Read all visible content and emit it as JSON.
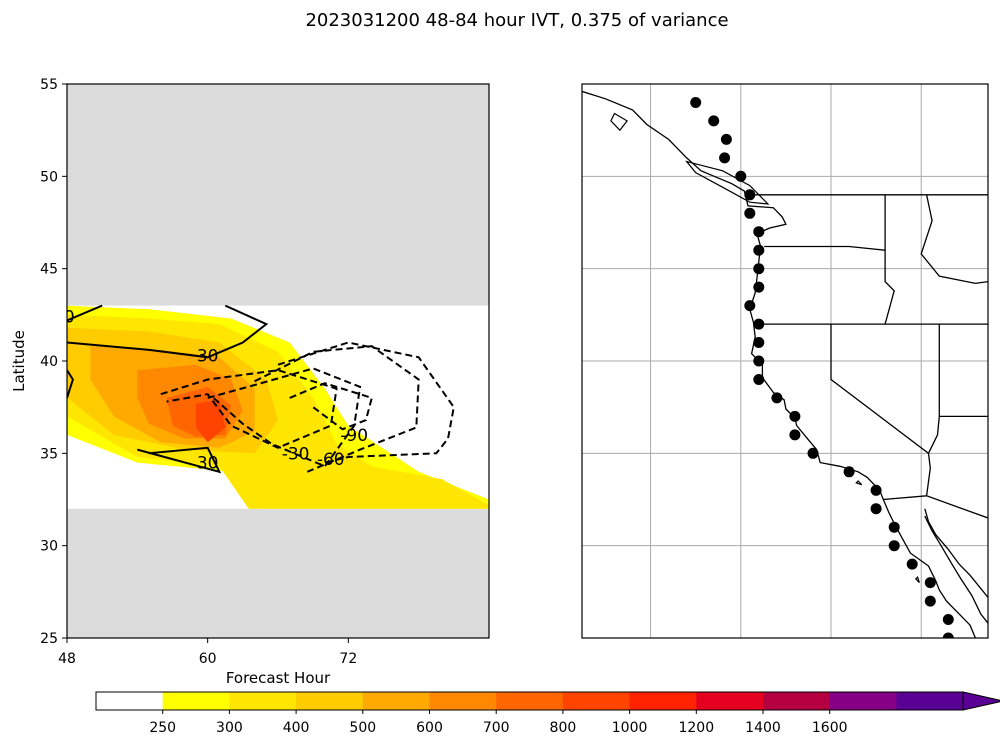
{
  "title": "2023031200 48-84 hour IVT, 0.375 of variance",
  "chart_data": [
    {
      "type": "contour",
      "xlabel": "Forecast Hour",
      "ylabel": "Latitude",
      "xlim": [
        48,
        84
      ],
      "ylim": [
        25,
        55
      ],
      "xticks": [
        48,
        60,
        72
      ],
      "yticks": [
        25,
        30,
        35,
        40,
        45,
        50,
        55
      ],
      "data_lat_range": [
        32,
        43
      ],
      "masked_color": "#dcdcdc",
      "filled_levels": [
        {
          "level": 250,
          "color": "#ffff00",
          "region": [
            [
              48,
              43
            ],
            [
              55,
              42.8
            ],
            [
              62,
              42.3
            ],
            [
              67,
              41
            ],
            [
              70,
              38.5
            ],
            [
              72,
              36.5
            ],
            [
              78,
              34
            ],
            [
              84,
              32.5
            ],
            [
              84,
              32
            ],
            [
              65,
              32
            ],
            [
              62,
              34
            ],
            [
              54,
              34.5
            ],
            [
              48,
              36
            ]
          ]
        },
        {
          "level": 300,
          "color": "#ffe600",
          "region": [
            [
              48,
              42.5
            ],
            [
              55,
              42.3
            ],
            [
              61,
              42
            ],
            [
              66,
              40.5
            ],
            [
              69,
              38
            ],
            [
              71,
              35.5
            ],
            [
              74,
              34.3
            ],
            [
              80,
              33.6
            ],
            [
              84,
              32.2
            ],
            [
              84,
              32
            ],
            [
              63.5,
              32
            ],
            [
              61,
              34.3
            ],
            [
              54,
              34.8
            ],
            [
              48,
              37
            ]
          ]
        },
        {
          "level": 400,
          "color": "#ffcc00",
          "region": [
            [
              48,
              41.8
            ],
            [
              55,
              41.6
            ],
            [
              61,
              41
            ],
            [
              65,
              39
            ],
            [
              66,
              36.8
            ],
            [
              64,
              35
            ],
            [
              58,
              35.2
            ],
            [
              52,
              36
            ],
            [
              48,
              38
            ]
          ]
        },
        {
          "level": 500,
          "color": "#ffaa00",
          "region": [
            [
              50,
              40.8
            ],
            [
              56,
              40.6
            ],
            [
              61,
              40.2
            ],
            [
              64,
              38.5
            ],
            [
              64,
              36.2
            ],
            [
              61,
              35.3
            ],
            [
              56,
              35.6
            ],
            [
              52,
              37
            ],
            [
              50,
              39
            ]
          ]
        },
        {
          "level": 600,
          "color": "#ff8800",
          "region": [
            [
              54,
              39.5
            ],
            [
              59,
              39.8
            ],
            [
              62,
              39
            ],
            [
              63,
              37.3
            ],
            [
              61.5,
              35.8
            ],
            [
              58,
              35.8
            ],
            [
              55,
              36.6
            ],
            [
              54,
              38
            ]
          ]
        },
        {
          "level": 700,
          "color": "#ff6600",
          "region": [
            [
              56.5,
              38
            ],
            [
              60,
              38.6
            ],
            [
              62,
              37.6
            ],
            [
              61.5,
              36
            ],
            [
              59,
              35.9
            ],
            [
              57,
              36.5
            ]
          ]
        },
        {
          "level": 800,
          "color": "#ff4400",
          "region": [
            [
              59,
              37.7
            ],
            [
              61,
              37.9
            ],
            [
              61.5,
              36.4
            ],
            [
              60,
              35.6
            ],
            [
              59,
              36.4
            ]
          ]
        }
      ],
      "solid_contours": [
        {
          "label": "30",
          "label_at": [
            60,
            40.3
          ],
          "points": [
            [
              48,
              41
            ],
            [
              55,
              40.6
            ],
            [
              60,
              40.2
            ],
            [
              63,
              41
            ],
            [
              65,
              42
            ],
            [
              61.5,
              43
            ]
          ]
        },
        {
          "label": "30",
          "label_at": [
            60,
            34.5
          ],
          "points": [
            [
              55,
              35
            ],
            [
              60,
              35.3
            ],
            [
              61,
              34
            ],
            [
              54,
              35.2
            ]
          ]
        },
        {
          "label": "0",
          "label_at": [
            48.2,
            42.4
          ],
          "points": [
            [
              48,
              42.2
            ],
            [
              51,
              43
            ]
          ]
        },
        {
          "label": "",
          "points": [
            [
              48,
              39.5
            ],
            [
              48.5,
              39
            ],
            [
              48,
              38
            ]
          ]
        }
      ],
      "dashed_contours": [
        {
          "label": "-30",
          "label_at": [
            67.5,
            35
          ],
          "points": [
            [
              56,
              38.2
            ],
            [
              60,
              39
            ],
            [
              66,
              39.5
            ],
            [
              71,
              38.5
            ],
            [
              70.5,
              36.5
            ],
            [
              66,
              35.3
            ],
            [
              62,
              36.5
            ],
            [
              60,
              38.2
            ],
            [
              56.5,
              37.8
            ]
          ]
        },
        {
          "label": "-60",
          "label_at": [
            70.5,
            34.7
          ],
          "points": [
            [
              60,
              38
            ],
            [
              64,
              38.7
            ],
            [
              69,
              39.6
            ],
            [
              73,
              38.6
            ],
            [
              72.5,
              36.5
            ],
            [
              70,
              34.3
            ],
            [
              65.5,
              35.5
            ],
            [
              63,
              36.6
            ],
            [
              60.5,
              38
            ]
          ]
        },
        {
          "label": "-90",
          "label_at": [
            72.5,
            36
          ],
          "points": [
            [
              67,
              38
            ],
            [
              70,
              38.8
            ],
            [
              74,
              38
            ],
            [
              73.5,
              36.8
            ],
            [
              71.5,
              36.3
            ],
            [
              69,
              37.5
            ]
          ]
        },
        {
          "label": "",
          "points": [
            [
              64,
              38.9
            ],
            [
              69,
              40.5
            ],
            [
              74,
              40.8
            ],
            [
              78,
              39
            ],
            [
              77.8,
              36.4
            ],
            [
              73,
              35.2
            ],
            [
              68.5,
              34
            ]
          ]
        },
        {
          "label": "",
          "points": [
            [
              66,
              39.8
            ],
            [
              72,
              41
            ],
            [
              78,
              40.2
            ],
            [
              81,
              37.5
            ],
            [
              80.5,
              35.8
            ],
            [
              79.5,
              35
            ],
            [
              72,
              34.8
            ],
            [
              70,
              34.5
            ]
          ]
        }
      ]
    },
    {
      "type": "map",
      "description_region": "US West Coast and Baja California",
      "points": [
        [
          -127.5,
          54
        ],
        [
          -126.5,
          53
        ],
        [
          -125.8,
          52
        ],
        [
          -125.9,
          51
        ],
        [
          -125,
          50
        ],
        [
          -124.5,
          49
        ],
        [
          -124.5,
          48
        ],
        [
          -124,
          47
        ],
        [
          -124,
          46
        ],
        [
          -124,
          45
        ],
        [
          -124,
          44
        ],
        [
          -124.5,
          43
        ],
        [
          -124,
          42
        ],
        [
          -124,
          41
        ],
        [
          -124,
          40
        ],
        [
          -124,
          39
        ],
        [
          -123,
          38
        ],
        [
          -122,
          37
        ],
        [
          -122,
          36
        ],
        [
          -121,
          35
        ],
        [
          -119,
          34
        ],
        [
          -117.5,
          33
        ],
        [
          -117.5,
          32
        ],
        [
          -116.5,
          31
        ],
        [
          -116.5,
          30
        ],
        [
          -115.5,
          29
        ],
        [
          -114.5,
          28
        ],
        [
          -114.5,
          27
        ],
        [
          -113.5,
          26
        ],
        [
          -113.5,
          25
        ]
      ]
    }
  ],
  "colorbar": {
    "ticks": [
      "250",
      "300",
      "400",
      "500",
      "600",
      "700",
      "800",
      "1000",
      "1200",
      "1400",
      "1600"
    ],
    "colors": [
      "#ffffff",
      "#ffff00",
      "#ffe600",
      "#ffcc00",
      "#ffaa00",
      "#ff8800",
      "#ff6600",
      "#ff4400",
      "#ff2200",
      "#e60020",
      "#b40040",
      "#850085",
      "#5a0095"
    ]
  }
}
